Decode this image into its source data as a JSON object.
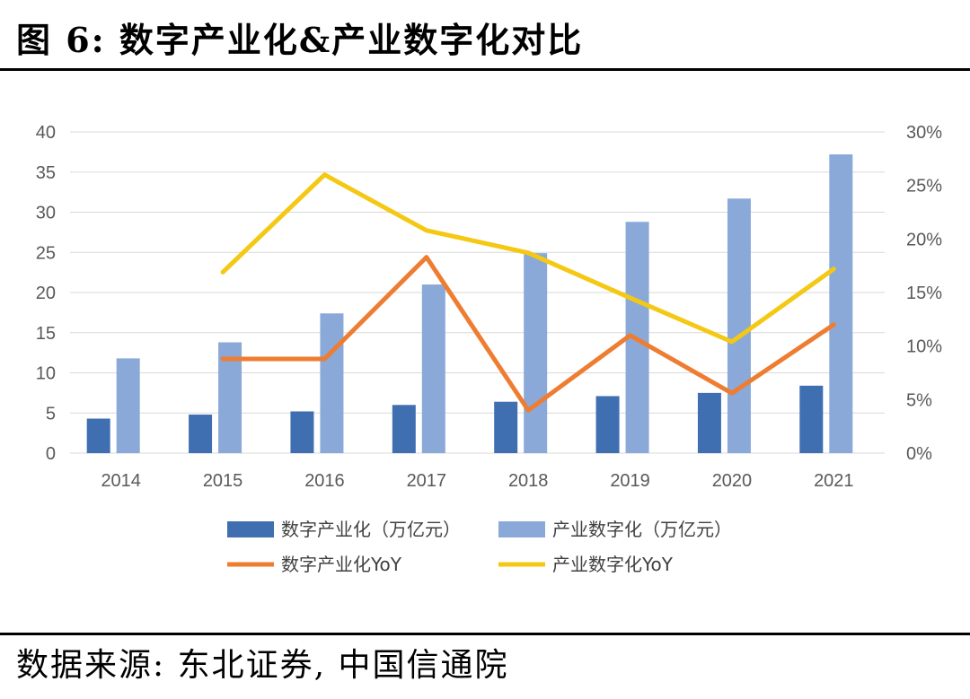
{
  "header": {
    "title": "图 6: 数字产业化&产业数字化对比"
  },
  "footer": {
    "source": "数据来源: 东北证券, 中国信通院"
  },
  "colors": {
    "series_dark": "#3f6fb1",
    "series_light": "#8aa9d8",
    "line_orange": "#ee7d31",
    "line_yellow": "#f4c813",
    "gridline": "#d9d9d9",
    "axis_text": "#595959"
  },
  "chart_data": {
    "type": "bar",
    "categories": [
      "2014",
      "2015",
      "2016",
      "2017",
      "2018",
      "2019",
      "2020",
      "2021"
    ],
    "series": [
      {
        "name": "数字产业化（万亿元）",
        "type": "bar",
        "axis": "left",
        "values": [
          4.3,
          4.8,
          5.2,
          6.0,
          6.4,
          7.1,
          7.5,
          8.4
        ]
      },
      {
        "name": "产业数字化（万亿元）",
        "type": "bar",
        "axis": "left",
        "values": [
          11.8,
          13.8,
          17.4,
          21.0,
          24.9,
          28.8,
          31.7,
          37.2
        ]
      },
      {
        "name": "数字产业化YoY",
        "type": "line",
        "axis": "right",
        "values": [
          null,
          0.088,
          0.088,
          0.183,
          0.04,
          0.11,
          0.056,
          0.12
        ]
      },
      {
        "name": "产业数字化YoY",
        "type": "line",
        "axis": "right",
        "values": [
          null,
          0.169,
          0.26,
          0.208,
          0.187,
          0.145,
          0.104,
          0.172
        ]
      }
    ],
    "y_left": {
      "min": 0,
      "max": 40,
      "ticks": [
        "0",
        "5",
        "10",
        "15",
        "20",
        "25",
        "30",
        "35",
        "40"
      ]
    },
    "y_right": {
      "min": 0,
      "max": 0.3,
      "ticks": [
        "0%",
        "5%",
        "10%",
        "15%",
        "20%",
        "25%",
        "30%"
      ]
    },
    "grid": true,
    "legend_position": "bottom"
  }
}
